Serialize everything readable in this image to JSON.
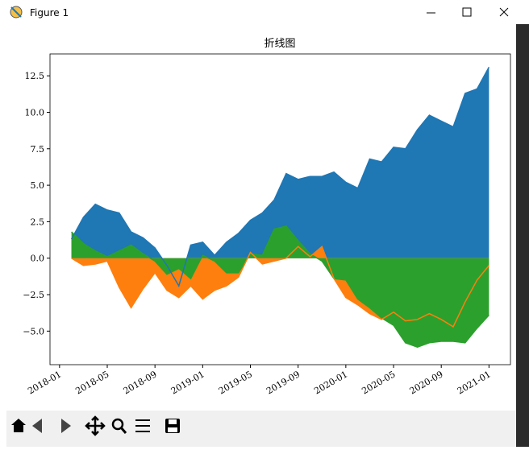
{
  "window": {
    "title": "Figure 1"
  },
  "chart_data": {
    "type": "area",
    "title": "折线图",
    "x": [
      "2018-02",
      "2018-03",
      "2018-04",
      "2018-05",
      "2018-06",
      "2018-07",
      "2018-08",
      "2018-09",
      "2018-10",
      "2018-11",
      "2018-12",
      "2019-01",
      "2019-02",
      "2019-03",
      "2019-04",
      "2019-05",
      "2019-06",
      "2019-07",
      "2019-08",
      "2019-09",
      "2019-10",
      "2019-11",
      "2019-12",
      "2020-01",
      "2020-02",
      "2020-03",
      "2020-04",
      "2020-05",
      "2020-06",
      "2020-07",
      "2020-08",
      "2020-09",
      "2020-10",
      "2020-11",
      "2020-12",
      "2021-01"
    ],
    "series": [
      {
        "color": "#1f77b4",
        "values": [
          1.3,
          2.8,
          3.7,
          3.3,
          3.1,
          1.8,
          1.4,
          0.7,
          -0.5,
          -1.9,
          0.9,
          1.1,
          0.2,
          1.1,
          1.7,
          2.6,
          3.1,
          4.0,
          5.8,
          5.4,
          5.6,
          5.6,
          5.9,
          5.2,
          4.8,
          6.8,
          6.6,
          7.6,
          7.5,
          8.8,
          9.8,
          9.4,
          9.0,
          11.3,
          11.6,
          13.1
        ]
      },
      {
        "color": "#ff7f0e",
        "values": [
          0.0,
          -0.5,
          -0.4,
          -0.2,
          -2.0,
          -3.4,
          -2.1,
          -1.0,
          -2.2,
          -2.7,
          -1.9,
          -2.8,
          -2.2,
          -1.9,
          -1.3,
          0.4,
          -0.4,
          -0.2,
          0.0,
          0.8,
          0.1,
          0.8,
          -1.4,
          -2.7,
          -3.2,
          -3.8,
          -4.2,
          -3.7,
          -4.3,
          -4.2,
          -3.8,
          -4.2,
          -4.7,
          -3.0,
          -1.5,
          -0.5
        ]
      },
      {
        "color": "#2ca02c",
        "values": [
          1.8,
          1.0,
          0.5,
          0.1,
          0.5,
          0.9,
          0.3,
          -0.2,
          -1.1,
          -0.7,
          -1.4,
          0.2,
          -0.2,
          -1.0,
          -1.0,
          0.3,
          0.2,
          2.0,
          2.2,
          1.2,
          0.3,
          -0.2,
          -1.4,
          -1.5,
          -2.8,
          -3.4,
          -4.1,
          -4.6,
          -5.8,
          -6.1,
          -5.8,
          -5.7,
          -5.7,
          -5.8,
          -4.8,
          -3.9
        ]
      }
    ],
    "xticks": [
      "2018-01",
      "2018-05",
      "2018-09",
      "2019-01",
      "2019-05",
      "2019-09",
      "2020-01",
      "2020-05",
      "2020-09",
      "2021-01"
    ],
    "ylim": [
      -7.3,
      14.0
    ],
    "yticks": [
      {
        "value": -5,
        "label": "−5.0"
      },
      {
        "value": -2.5,
        "label": "−2.5"
      },
      {
        "value": 0,
        "label": "0.0"
      },
      {
        "value": 2.5,
        "label": "2.5"
      },
      {
        "value": 5,
        "label": "5.0"
      },
      {
        "value": 7.5,
        "label": "7.5"
      },
      {
        "value": 10,
        "label": "10.0"
      },
      {
        "value": 12.5,
        "label": "12.5"
      }
    ]
  }
}
